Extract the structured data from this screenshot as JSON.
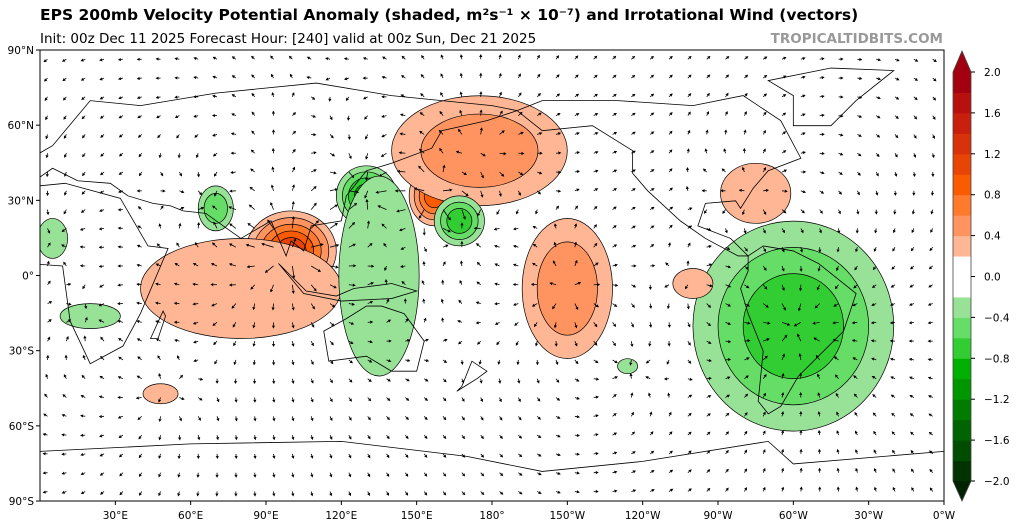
{
  "header": {
    "title": "EPS 200mb Velocity Potential Anomaly (shaded, m²s⁻¹ × 10⁻⁷) and Irrotational Wind (vectors)",
    "subtitle": "Init: 00z Dec 11 2025   Forecast Hour: [240]   valid at 00z Sun, Dec 21 2025",
    "brand": "TROPICALTIDBITS.COM"
  },
  "map": {
    "projection": "equirectangular",
    "lon_range": [
      0,
      360
    ],
    "lat_range": [
      -90,
      90
    ],
    "lat_labels": [
      "90°N",
      "60°N",
      "30°N",
      "0°",
      "30°S",
      "60°S",
      "90°S"
    ],
    "lon_labels": [
      "30°E",
      "60°E",
      "90°E",
      "120°E",
      "150°E",
      "180°",
      "150°W",
      "120°W",
      "90°W",
      "60°W",
      "30°W",
      "0°W"
    ],
    "anomaly_centers": [
      {
        "lon": 100,
        "lat": 10,
        "value": 1.2,
        "rlon": 18,
        "rlat": 16
      },
      {
        "lon": 80,
        "lat": -5,
        "value": 0.4,
        "rlon": 40,
        "rlat": 20
      },
      {
        "lon": 130,
        "lat": 32,
        "value": -1.0,
        "rlon": 12,
        "rlat": 12
      },
      {
        "lon": 135,
        "lat": 0,
        "value": -0.4,
        "rlon": 16,
        "rlat": 40
      },
      {
        "lon": 157,
        "lat": 32,
        "value": 1.0,
        "rlon": 10,
        "rlat": 12
      },
      {
        "lon": 175,
        "lat": 50,
        "value": 0.6,
        "rlon": 35,
        "rlat": 22
      },
      {
        "lon": 167,
        "lat": 22,
        "value": -0.8,
        "rlon": 10,
        "rlat": 10
      },
      {
        "lon": 210,
        "lat": -5,
        "value": 0.6,
        "rlon": 18,
        "rlat": 28
      },
      {
        "lon": 285,
        "lat": 33,
        "value": 0.4,
        "rlon": 14,
        "rlat": 12
      },
      {
        "lon": 300,
        "lat": -20,
        "value": -0.8,
        "rlon": 40,
        "rlat": 42
      },
      {
        "lon": 70,
        "lat": 27,
        "value": -0.6,
        "rlon": 7,
        "rlat": 9
      },
      {
        "lon": 5,
        "lat": 15,
        "value": -0.4,
        "rlon": 6,
        "rlat": 8
      },
      {
        "lon": 48,
        "lat": -47,
        "value": 0.4,
        "rlon": 7,
        "rlat": 4
      },
      {
        "lon": 20,
        "lat": -16,
        "value": -0.4,
        "rlon": 12,
        "rlat": 5
      },
      {
        "lon": 234,
        "lat": -36,
        "value": -0.4,
        "rlon": 4,
        "rlat": 3
      },
      {
        "lon": 260,
        "lat": -3,
        "value": 0.4,
        "rlon": 8,
        "rlat": 6
      }
    ]
  },
  "colorbar": {
    "ticks": [
      "2.0",
      "1.6",
      "1.2",
      "0.8",
      "0.4",
      "0.0",
      "−0.4",
      "−0.8",
      "−1.2",
      "−1.6",
      "−2.0"
    ],
    "levels": [
      -2.0,
      -1.8,
      -1.6,
      -1.4,
      -1.2,
      -1.0,
      -0.8,
      -0.6,
      -0.4,
      -0.2,
      0.2,
      0.4,
      0.6,
      0.8,
      1.0,
      1.2,
      1.4,
      1.6,
      1.8,
      2.0
    ],
    "colors_neg": [
      "#003300",
      "#004d00",
      "#006400",
      "#007d00",
      "#009600",
      "#00b000",
      "#32cd32",
      "#66dd66",
      "#98e298",
      "#c7f1c7"
    ],
    "colors_pos": [
      "#ffdac9",
      "#ffb695",
      "#ff9460",
      "#ff7a2c",
      "#fa5a00",
      "#e84405",
      "#d8320b",
      "#c8200d",
      "#b8100f",
      "#a50010"
    ],
    "under": "#002200",
    "over": "#a00010"
  }
}
